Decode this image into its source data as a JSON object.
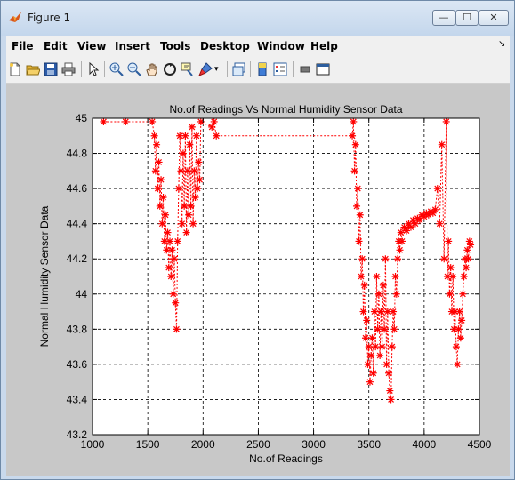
{
  "window": {
    "title": "Figure 1",
    "min_glyph": "—",
    "max_glyph": "☐",
    "close_glyph": "✕"
  },
  "menubar": {
    "items": [
      "File",
      "Edit",
      "View",
      "Insert",
      "Tools",
      "Desktop",
      "Window",
      "Help"
    ],
    "dock_glyph": "↘"
  },
  "toolbar": {
    "buttons": [
      "new-figure",
      "open-file",
      "save-figure",
      "print-figure",
      "edit-plot",
      "zoom-in",
      "zoom-out",
      "pan",
      "rotate-3d",
      "data-cursor",
      "brush",
      "link-plot",
      "colorbar",
      "legend",
      "hide-plot-tools",
      "show-plot-tools"
    ]
  },
  "colors": {
    "series": "#ff0000",
    "figure_bg": "#c8c8c8",
    "axes_bg": "#ffffff"
  },
  "chart_data": {
    "type": "line",
    "title": "No.of Readings Vs Normal Humidity Sensor Data",
    "xlabel": "No.of Readings",
    "ylabel": "Normal Humidity Sensor Data",
    "xlim": [
      1000,
      4500
    ],
    "ylim": [
      43.2,
      45
    ],
    "xticks": [
      1000,
      1500,
      2000,
      2500,
      3000,
      3500,
      4000,
      4500
    ],
    "yticks": [
      43.2,
      43.4,
      43.6,
      43.8,
      44,
      44.2,
      44.4,
      44.6,
      44.8,
      45
    ],
    "grid": true,
    "marker": "*",
    "series": [
      {
        "x": [
          1100,
          1300,
          1540,
          1560,
          1570,
          1580,
          1590,
          1600,
          1610,
          1620,
          1630,
          1640,
          1650,
          1660,
          1670,
          1680,
          1690,
          1700,
          1710,
          1720,
          1730,
          1740,
          1750,
          1760,
          1770,
          1780,
          1790,
          1800,
          1810,
          1820,
          1830,
          1840,
          1850,
          1860,
          1870,
          1880,
          1890,
          1900,
          1910,
          1920,
          1930,
          1940,
          1950,
          1960,
          1970,
          1980,
          2080,
          2100,
          2120,
          3350,
          3360,
          3370,
          3380,
          3390,
          3400,
          3410,
          3420,
          3430,
          3440,
          3450,
          3460,
          3470,
          3480,
          3490,
          3500,
          3510,
          3520,
          3530,
          3540,
          3550,
          3560,
          3570,
          3580,
          3590,
          3600,
          3610,
          3620,
          3630,
          3640,
          3650,
          3660,
          3670,
          3680,
          3690,
          3700,
          3710,
          3720,
          3730,
          3740,
          3750,
          3760,
          3770,
          3780,
          3790,
          3800,
          3820,
          3840,
          3860,
          3880,
          3900,
          3920,
          3940,
          3960,
          3980,
          4000,
          4020,
          4040,
          4060,
          4080,
          4100,
          4120,
          4140,
          4160,
          4180,
          4200,
          4210,
          4220,
          4230,
          4240,
          4250,
          4260,
          4270,
          4280,
          4290,
          4300,
          4310,
          4320,
          4330,
          4340,
          4350,
          4360,
          4370,
          4380,
          4390,
          4400,
          4410,
          4420
        ],
        "y": [
          44.98,
          44.98,
          44.98,
          44.9,
          44.7,
          44.85,
          44.6,
          44.75,
          44.5,
          44.65,
          44.4,
          44.55,
          44.3,
          44.45,
          44.25,
          44.35,
          44.15,
          44.3,
          44.1,
          44.25,
          44.0,
          44.2,
          43.95,
          43.8,
          44.3,
          44.6,
          44.9,
          44.7,
          44.4,
          44.8,
          44.5,
          44.9,
          44.35,
          44.7,
          44.45,
          44.85,
          44.5,
          44.95,
          44.4,
          44.7,
          44.55,
          44.9,
          44.6,
          44.75,
          44.65,
          44.98,
          44.95,
          44.98,
          44.9,
          44.9,
          44.98,
          44.7,
          44.85,
          44.5,
          44.6,
          44.3,
          44.45,
          44.1,
          44.2,
          43.9,
          44.05,
          43.75,
          43.85,
          43.6,
          43.7,
          43.5,
          43.65,
          43.75,
          43.55,
          43.9,
          43.7,
          44.1,
          43.8,
          44.0,
          43.65,
          43.9,
          43.7,
          44.05,
          43.8,
          44.2,
          43.6,
          43.9,
          43.55,
          43.45,
          43.4,
          43.7,
          43.9,
          43.8,
          44.1,
          44.0,
          44.2,
          44.3,
          44.25,
          44.35,
          44.3,
          44.38,
          44.36,
          44.4,
          44.38,
          44.42,
          44.4,
          44.43,
          44.42,
          44.45,
          44.44,
          44.46,
          44.45,
          44.47,
          44.46,
          44.48,
          44.6,
          44.4,
          44.85,
          44.2,
          44.98,
          44.1,
          44.3,
          44.0,
          44.15,
          43.9,
          44.1,
          43.8,
          43.9,
          43.7,
          43.6,
          43.8,
          43.9,
          43.75,
          43.85,
          44.0,
          44.1,
          44.2,
          44.15,
          44.25,
          44.2,
          44.3,
          44.28
        ]
      }
    ]
  }
}
